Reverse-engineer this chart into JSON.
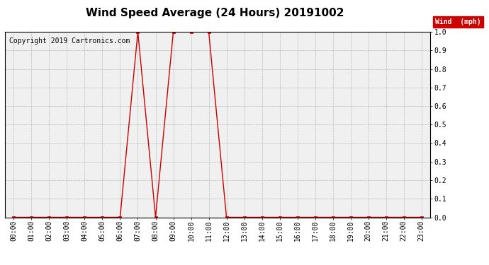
{
  "title": "Wind Speed Average (24 Hours) 20191002",
  "copyright_text": "Copyright 2019 Cartronics.com",
  "legend_label": "Wind  (mph)",
  "legend_bg": "#cc0000",
  "legend_fg": "#ffffff",
  "line_color": "#cc0000",
  "marker_color": "#cc0000",
  "ylim": [
    0.0,
    1.0
  ],
  "yticks": [
    0.0,
    0.1,
    0.2,
    0.3,
    0.4,
    0.5,
    0.6,
    0.7,
    0.8,
    0.9,
    1.0
  ],
  "ytick_labels": [
    "0.0",
    "0.1",
    "0.2",
    "0.3",
    "0.4",
    "0.5",
    "0.6",
    "0.7",
    "0.8",
    "0.9",
    "1.0"
  ],
  "hours": [
    "00:00",
    "01:00",
    "02:00",
    "03:00",
    "04:00",
    "05:00",
    "06:00",
    "07:00",
    "08:00",
    "09:00",
    "10:00",
    "11:00",
    "12:00",
    "13:00",
    "14:00",
    "15:00",
    "16:00",
    "17:00",
    "18:00",
    "19:00",
    "20:00",
    "21:00",
    "22:00",
    "23:00"
  ],
  "values": [
    0.0,
    0.0,
    0.0,
    0.0,
    0.0,
    0.0,
    0.0,
    1.0,
    0.0,
    1.0,
    1.0,
    1.0,
    0.0,
    0.0,
    0.0,
    0.0,
    0.0,
    0.0,
    0.0,
    0.0,
    0.0,
    0.0,
    0.0,
    0.0
  ],
  "bg_color": "#ffffff",
  "plot_bg_color": "#f0f0f0",
  "grid_color": "#aaaaaa",
  "title_fontsize": 11,
  "tick_fontsize": 7,
  "copyright_fontsize": 7,
  "figsize": [
    6.9,
    3.75
  ],
  "dpi": 100
}
